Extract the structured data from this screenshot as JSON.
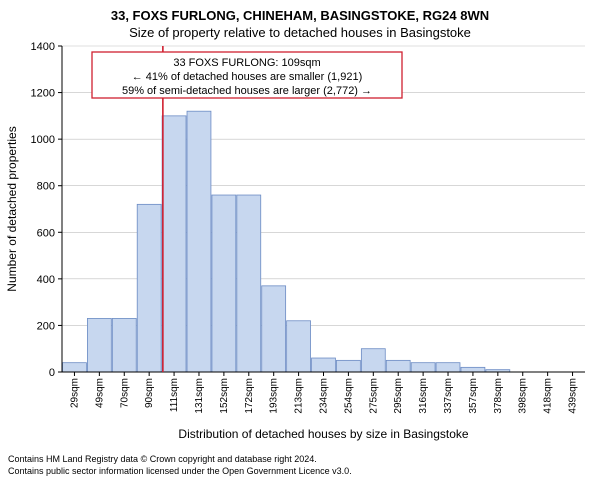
{
  "title_line1": "33, FOXS FURLONG, CHINEHAM, BASINGSTOKE, RG24 8WN",
  "title_line2": "Size of property relative to detached houses in Basingstoke",
  "y_axis_label": "Number of detached properties",
  "x_axis_label": "Distribution of detached houses by size in Basingstoke",
  "chart": {
    "type": "histogram",
    "ylim": [
      0,
      1400
    ],
    "ytick_step": 200,
    "yticks": [
      0,
      200,
      400,
      600,
      800,
      1000,
      1200,
      1400
    ],
    "x_categories": [
      "29sqm",
      "49sqm",
      "70sqm",
      "90sqm",
      "111sqm",
      "131sqm",
      "152sqm",
      "172sqm",
      "193sqm",
      "213sqm",
      "234sqm",
      "254sqm",
      "275sqm",
      "295sqm",
      "316sqm",
      "337sqm",
      "357sqm",
      "378sqm",
      "398sqm",
      "418sqm",
      "439sqm"
    ],
    "values": [
      40,
      230,
      230,
      720,
      1100,
      1120,
      760,
      760,
      370,
      220,
      60,
      50,
      100,
      50,
      40,
      40,
      20,
      10,
      0,
      0,
      0
    ],
    "bar_fill": "#c7d7ef",
    "bar_stroke": "#6b8bc4",
    "grid_color": "#bfbfbf",
    "axis_color": "#000000",
    "background": "#ffffff",
    "highlight_line_color": "#d02030",
    "highlight_x_index": 4
  },
  "callout": {
    "border_color": "#d02030",
    "bg": "#ffffff",
    "line1": "33 FOXS FURLONG: 109sqm",
    "line2": "← 41% of detached houses are smaller (1,921)",
    "line3": "59% of semi-detached houses are larger (2,772) →"
  },
  "footer_line1": "Contains HM Land Registry data © Crown copyright and database right 2024.",
  "footer_line2": "Contains public sector information licensed under the Open Government Licence v3.0."
}
